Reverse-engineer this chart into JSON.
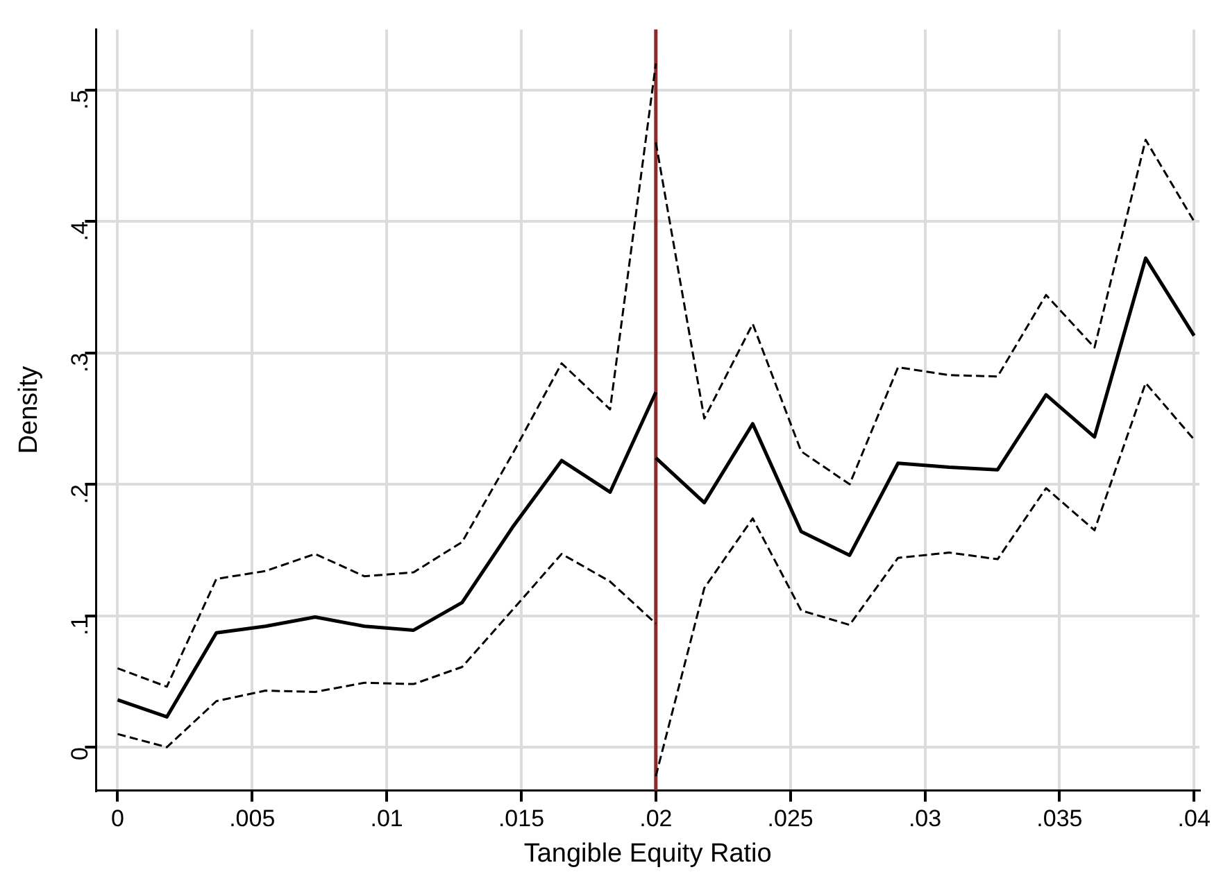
{
  "chart_data": {
    "type": "line",
    "xlabel": "Tangible Equity Ratio",
    "ylabel": "Density",
    "xlim": [
      -0.0008,
      0.0402
    ],
    "ylim": [
      -0.033,
      0.546
    ],
    "xticks": [
      0,
      {
        "value": 0.005,
        "label": ".005"
      },
      {
        "value": 0.01,
        "label": ".01"
      },
      {
        "value": 0.015,
        "label": ".015"
      },
      {
        "value": 0.02,
        "label": ".02"
      },
      {
        "value": 0.025,
        "label": ".025"
      },
      {
        "value": 0.03,
        "label": ".03"
      },
      {
        "value": 0.035,
        "label": ".035"
      },
      {
        "value": 0.04,
        "label": ".04"
      }
    ],
    "yticks": [
      0,
      {
        "value": 0.1,
        "label": ".1"
      },
      {
        "value": 0.2,
        "label": ".2"
      },
      {
        "value": 0.3,
        "label": ".3"
      },
      {
        "value": 0.4,
        "label": ".4"
      },
      {
        "value": 0.5,
        "label": ".5"
      }
    ],
    "grid": true,
    "legend": false,
    "marker": "none",
    "series": [
      {
        "color": "#000000",
        "line_style": "solid",
        "x": [
          0,
          0.00183,
          0.00367,
          0.0055,
          0.00734,
          0.00917,
          0.011,
          0.0128,
          0.0147,
          0.0165,
          0.0183,
          0.02
        ],
        "values": [
          0.036,
          0.023,
          0.087,
          0.092,
          0.099,
          0.092,
          0.089,
          0.11,
          0.168,
          0.218,
          0.194,
          0.27
        ]
      },
      {
        "color": "#000000",
        "line_style": "dashed",
        "x": [
          0,
          0.00183,
          0.00367,
          0.0055,
          0.00734,
          0.00917,
          0.011,
          0.0128,
          0.0147,
          0.0165,
          0.0183,
          0.02
        ],
        "values": [
          0.06,
          0.046,
          0.128,
          0.134,
          0.147,
          0.13,
          0.133,
          0.156,
          0.224,
          0.292,
          0.257,
          0.52
        ]
      },
      {
        "color": "#000000",
        "line_style": "dashed",
        "x": [
          0,
          0.00183,
          0.00367,
          0.0055,
          0.00734,
          0.00917,
          0.011,
          0.0128,
          0.0147,
          0.0165,
          0.0183,
          0.02
        ],
        "values": [
          0.01,
          0.0,
          0.035,
          0.043,
          0.042,
          0.049,
          0.048,
          0.061,
          0.105,
          0.147,
          0.126,
          0.094
        ]
      },
      {
        "color": "#000000",
        "line_style": "solid",
        "x": [
          0.02,
          0.0218,
          0.0236,
          0.0254,
          0.0272,
          0.029,
          0.0309,
          0.0327,
          0.0345,
          0.0363,
          0.0382,
          0.04
        ],
        "values": [
          0.22,
          0.186,
          0.246,
          0.164,
          0.146,
          0.216,
          0.213,
          0.211,
          0.268,
          0.236,
          0.372,
          0.313
        ]
      },
      {
        "color": "#000000",
        "line_style": "dashed",
        "x": [
          0.02,
          0.0218,
          0.0236,
          0.0254,
          0.0272,
          0.029,
          0.0309,
          0.0327,
          0.0345,
          0.0363,
          0.0382,
          0.04
        ],
        "values": [
          0.46,
          0.25,
          0.322,
          0.225,
          0.2,
          0.289,
          0.283,
          0.282,
          0.344,
          0.304,
          0.462,
          0.4
        ]
      },
      {
        "color": "#000000",
        "line_style": "dashed",
        "x": [
          0.02,
          0.0218,
          0.0236,
          0.0254,
          0.0272,
          0.029,
          0.0309,
          0.0327,
          0.0345,
          0.0363,
          0.0382,
          0.04
        ],
        "values": [
          -0.022,
          0.121,
          0.174,
          0.104,
          0.093,
          0.144,
          0.148,
          0.143,
          0.197,
          0.165,
          0.277,
          0.234
        ]
      }
    ],
    "ref_lines": [
      {
        "axis": "x",
        "value": 0.02,
        "color": "#8b2a2a",
        "line_style": "solid"
      }
    ]
  }
}
